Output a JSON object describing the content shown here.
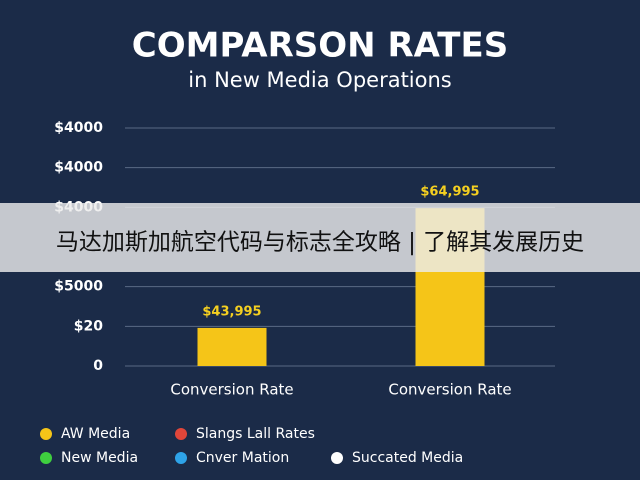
{
  "chart_data": {
    "type": "bar",
    "title": "COMPARSON RATES",
    "subtitle": "in New Media Operations",
    "categories": [
      "Conversion Rate",
      "Conversion Rate"
    ],
    "series": [
      {
        "name": "AW Media",
        "color": "#f5c518",
        "values": [
          0.96,
          3.98
        ]
      },
      {
        "name": "Slangs Lall Rates",
        "color": "#e0463a",
        "values": [
          null,
          null
        ]
      },
      {
        "name": "New Media",
        "color": "#3fcf3f",
        "values": [
          null,
          null
        ]
      },
      {
        "name": "Cnver Mation",
        "color": "#2ea3e8",
        "values": [
          null,
          null
        ]
      },
      {
        "name": "Succated Media",
        "color": "#ffffff",
        "values": [
          null,
          null
        ]
      }
    ],
    "annotations": [
      "$43,995",
      "$64,995"
    ],
    "ylim": [
      0,
      6
    ],
    "yticks": [
      0,
      {
        "value": 1,
        "label": "$20"
      },
      {
        "value": 2,
        "label": "$5000"
      },
      {
        "value": 4,
        "label": "$4000"
      },
      {
        "value": 5,
        "label": "$4000"
      },
      {
        "value": 6,
        "label": "$4000"
      }
    ],
    "grid": true
  },
  "banner": "马达加斯加航空代码与标志全攻略 | 了解其发展历史"
}
